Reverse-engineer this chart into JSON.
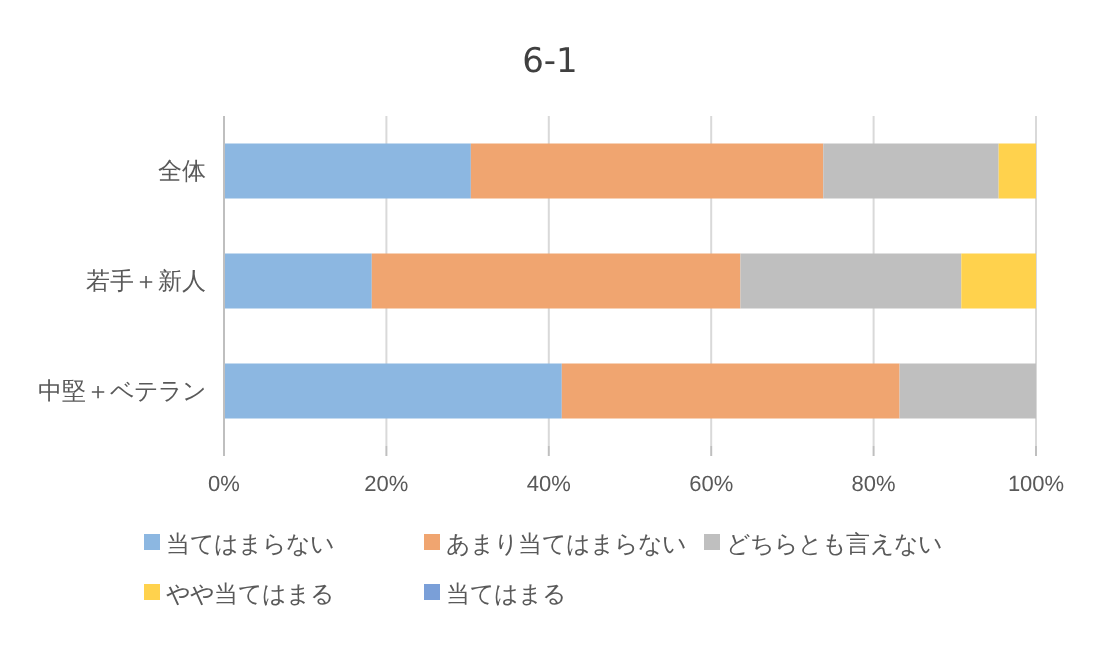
{
  "chart_data": {
    "type": "bar",
    "orientation": "horizontal",
    "stacked": true,
    "title": "6-1",
    "categories": [
      "全体",
      "若手＋新人",
      "中堅＋ベテラン"
    ],
    "series": [
      {
        "name": "当てはまらない",
        "color": "#8cb7e1",
        "values": [
          30.4,
          18.2,
          41.6
        ]
      },
      {
        "name": "あまり当てはまらない",
        "color": "#f0a570",
        "values": [
          43.4,
          45.4,
          41.6
        ]
      },
      {
        "name": "どちらとも言えない",
        "color": "#bfbfbf",
        "values": [
          21.6,
          27.2,
          16.8
        ]
      },
      {
        "name": "やや当てはまる",
        "color": "#ffd24d",
        "values": [
          4.6,
          9.2,
          0
        ]
      },
      {
        "name": "当てはまる",
        "color": "#7a9fd8",
        "values": [
          0,
          0,
          0
        ]
      }
    ],
    "xlim": [
      0,
      100
    ],
    "xticks": [
      {
        "value": 0,
        "label": "0%"
      },
      {
        "value": 20,
        "label": "20%"
      },
      {
        "value": 40,
        "label": "40%"
      },
      {
        "value": 60,
        "label": "60%"
      },
      {
        "value": 80,
        "label": "80%"
      },
      {
        "value": 100,
        "label": "100%"
      }
    ],
    "grid": "x",
    "legend": "bottom"
  }
}
